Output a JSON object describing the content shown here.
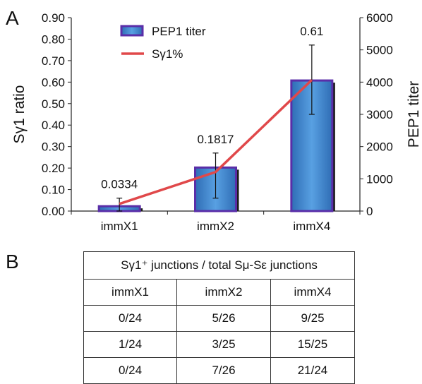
{
  "panels": {
    "a": "A",
    "b": "B"
  },
  "chart_data": {
    "type": "bar",
    "categories": [
      "immX1",
      "immX2",
      "immX4"
    ],
    "series": [
      {
        "name": "PEP1 titer",
        "kind": "bar",
        "axis": "right",
        "values": [
          150,
          1350,
          4050
        ],
        "error": [
          [
            0,
            400
          ],
          [
            400,
            1800
          ],
          [
            3000,
            5150
          ]
        ],
        "data_labels": [
          "0.0334",
          "0.1817",
          "0.61"
        ]
      },
      {
        "name": "Sγ1%",
        "kind": "line",
        "axis": "left",
        "values": [
          0.0334,
          0.1817,
          0.61
        ]
      }
    ],
    "ylabel": "Sγ1 ratio",
    "y2label": "PEP1 titer",
    "ylim": [
      0,
      0.9
    ],
    "y2lim": [
      0,
      6000
    ],
    "yticks": [
      "0.00",
      "0.10",
      "0.20",
      "0.30",
      "0.40",
      "0.50",
      "0.60",
      "0.70",
      "0.80",
      "0.90"
    ],
    "y2ticks": [
      "0",
      "1000",
      "2000",
      "3000",
      "4000",
      "5000",
      "6000"
    ],
    "grid": false,
    "legend": "top-center",
    "colors": {
      "bar": "#3f86d0",
      "bar_edge": "#5a2ea8",
      "line": "#e0484a"
    }
  },
  "table": {
    "header": "Sγ1⁺ junctions / total Sμ-Sε  junctions",
    "columns": [
      "immX1",
      "immX2",
      "immX4"
    ],
    "rows": [
      [
        "0/24",
        "5/26",
        "9/25"
      ],
      [
        "1/24",
        "3/25",
        "15/25"
      ],
      [
        "0/24",
        "7/26",
        "21/24"
      ]
    ]
  }
}
